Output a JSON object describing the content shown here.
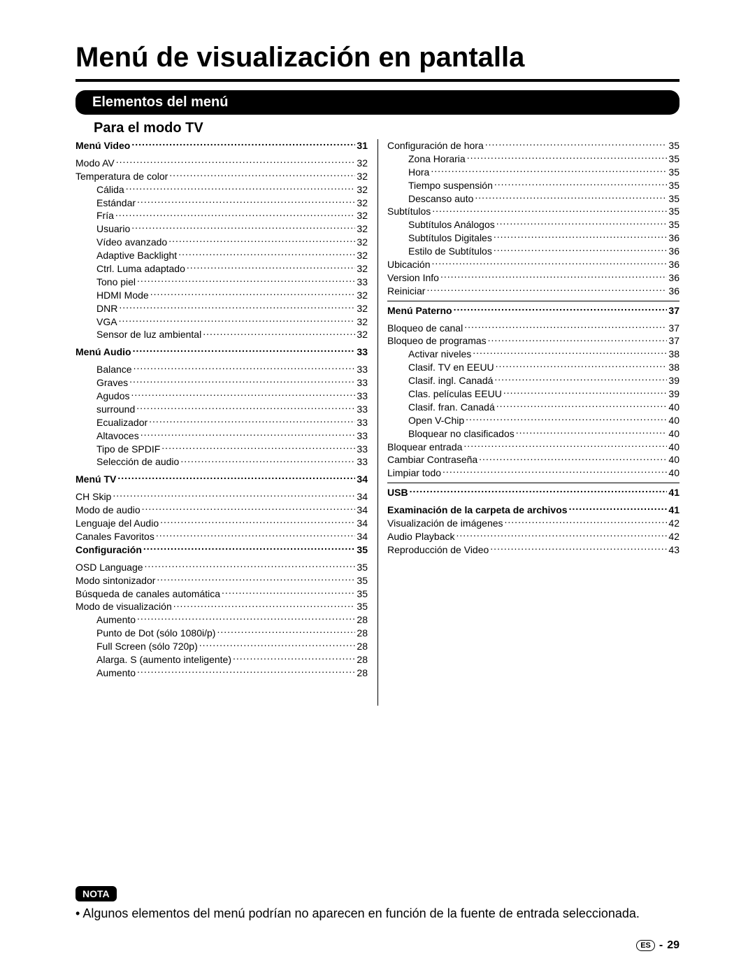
{
  "title": "Menú de visualización en pantalla",
  "section_bar": "Elementos del menú",
  "subtitle": "Para el modo TV",
  "note_label": "NOTA",
  "note_bullet": "•",
  "note_text": "Algunos elementos del menú podrían no aparecen en función de la fuente de entrada seleccionada.",
  "footer_lang": "ES",
  "footer_sep": "-",
  "footer_page": "29",
  "left": [
    {
      "label": "Menú Video",
      "page": "31",
      "bold": true,
      "level": 0,
      "gap_after": true
    },
    {
      "label": "Modo AV",
      "page": "32",
      "level": 1
    },
    {
      "label": "Temperatura de color",
      "page": "32",
      "level": 1
    },
    {
      "label": "Cálida",
      "page": "32",
      "level": 2
    },
    {
      "label": "Estándar",
      "page": "32",
      "level": 2
    },
    {
      "label": "Fría",
      "page": "32",
      "level": 2
    },
    {
      "label": "Usuario",
      "page": "32",
      "level": 2
    },
    {
      "label": "Vídeo avanzado",
      "page": "32",
      "level": 2
    },
    {
      "label": "Adaptive Backlight",
      "page": "32",
      "level": 2
    },
    {
      "label": "Ctrl. Luma adaptado",
      "page": "32",
      "level": 2
    },
    {
      "label": "Tono piel",
      "page": "33",
      "level": 2
    },
    {
      "label": "HDMI Mode",
      "page": "32",
      "level": 2
    },
    {
      "label": "DNR",
      "page": "32",
      "level": 2
    },
    {
      "label": "VGA",
      "page": "32",
      "level": 2
    },
    {
      "label": "Sensor de luz ambiental",
      "page": "32",
      "level": 2,
      "gap_after": true
    },
    {
      "label": "Menú Audio",
      "page": "33",
      "bold": true,
      "level": 0,
      "gap_after": true
    },
    {
      "label": "Balance",
      "page": "33",
      "level": 2
    },
    {
      "label": "Graves",
      "page": "33",
      "level": 2
    },
    {
      "label": "Agudos",
      "page": "33",
      "level": 2
    },
    {
      "label": "surround",
      "page": "33",
      "level": 2
    },
    {
      "label": "Ecualizador",
      "page": "33",
      "level": 2
    },
    {
      "label": "Altavoces",
      "page": "33",
      "level": 2
    },
    {
      "label": "Tipo de SPDIF",
      "page": "33",
      "level": 2
    },
    {
      "label": "Selección de audio",
      "page": "33",
      "level": 2,
      "gap_after": true
    },
    {
      "label": "Menú TV",
      "page": "34",
      "bold": true,
      "level": 0,
      "gap_after": true
    },
    {
      "label": "CH Skip",
      "page": "34",
      "level": 1
    },
    {
      "label": "Modo de audio",
      "page": "34",
      "level": 1
    },
    {
      "label": "Lenguaje del Audio",
      "page": "34",
      "level": 1
    },
    {
      "label": "Canales Favoritos",
      "page": "34",
      "level": 1
    },
    {
      "label": "Configuración",
      "page": "35",
      "bold": true,
      "level": 0,
      "gap_after": true
    },
    {
      "label": "OSD Language",
      "page": "35",
      "level": 1
    },
    {
      "label": "Modo sintonizador",
      "page": "35",
      "level": 1
    },
    {
      "label": "Búsqueda de canales automática",
      "page": "35",
      "level": 1
    },
    {
      "label": "Modo de visualización",
      "page": "35",
      "level": 1
    },
    {
      "label": "Aumento",
      "page": "28",
      "level": 2
    },
    {
      "label": "Punto de Dot (sólo 1080i/p)",
      "page": "28",
      "level": 2
    },
    {
      "label": "Full Screen (sólo 720p)",
      "page": "28",
      "level": 2
    },
    {
      "label": "Alarga. S (aumento inteligente)",
      "page": "28",
      "level": 2
    },
    {
      "label": "Aumento",
      "page": "28",
      "level": 2
    }
  ],
  "right": [
    {
      "label": "Configuración de hora",
      "page": "35",
      "level": 1
    },
    {
      "label": "Zona Horaria",
      "page": "35",
      "level": 2
    },
    {
      "label": "Hora",
      "page": "35",
      "level": 2
    },
    {
      "label": "Tiempo suspensión",
      "page": "35",
      "level": 2
    },
    {
      "label": "Descanso auto",
      "page": "35",
      "level": 2
    },
    {
      "label": "Subtítulos",
      "page": "35",
      "level": 1
    },
    {
      "label": "Subtítulos Análogos",
      "page": "35",
      "level": 2
    },
    {
      "label": "Subtítulos Digitales",
      "page": "36",
      "level": 2
    },
    {
      "label": "Estilo de Subtítulos",
      "page": "36",
      "level": 2
    },
    {
      "label": "Ubicación",
      "page": "36",
      "level": 1
    },
    {
      "label": "Version Info",
      "page": "36",
      "level": 1
    },
    {
      "label": "Reiniciar",
      "page": "36",
      "level": 1,
      "hr_after": true
    },
    {
      "label": "Menú Paterno",
      "page": "37",
      "bold": true,
      "level": 0,
      "gap_after": true
    },
    {
      "label": "Bloqueo de canal",
      "page": "37",
      "level": 1
    },
    {
      "label": "Bloqueo de programas",
      "page": "37",
      "level": 1
    },
    {
      "label": "Activar niveles",
      "page": "38",
      "level": 2
    },
    {
      "label": "Clasif. TV en EEUU",
      "page": "38",
      "level": 2
    },
    {
      "label": "Clasif. ingl. Canadá",
      "page": "39",
      "level": 2
    },
    {
      "label": "Clas. películas EEUU",
      "page": "39",
      "level": 2
    },
    {
      "label": "Clasif. fran. Canadá",
      "page": "40",
      "level": 2
    },
    {
      "label": "Open V-Chip",
      "page": "40",
      "level": 2
    },
    {
      "label": "Bloquear no clasificados",
      "page": "40",
      "level": 2
    },
    {
      "label": "Bloquear entrada",
      "page": "40",
      "level": 1
    },
    {
      "label": "Cambiar Contraseña",
      "page": "40",
      "level": 1
    },
    {
      "label": "Limpiar todo",
      "page": "40",
      "level": 1,
      "hr_after": true
    },
    {
      "label": "USB",
      "page": "41",
      "bold": true,
      "level": 0,
      "gap_after": true
    },
    {
      "label": "Examinación de la carpeta de archivos",
      "page": "41",
      "bold": true,
      "level": 1
    },
    {
      "label": "Visualización de imágenes",
      "page": "42",
      "level": 1
    },
    {
      "label": "Audio Playback",
      "page": "42",
      "level": 1
    },
    {
      "label": "Reproducción de Video",
      "page": "43",
      "level": 1
    }
  ]
}
